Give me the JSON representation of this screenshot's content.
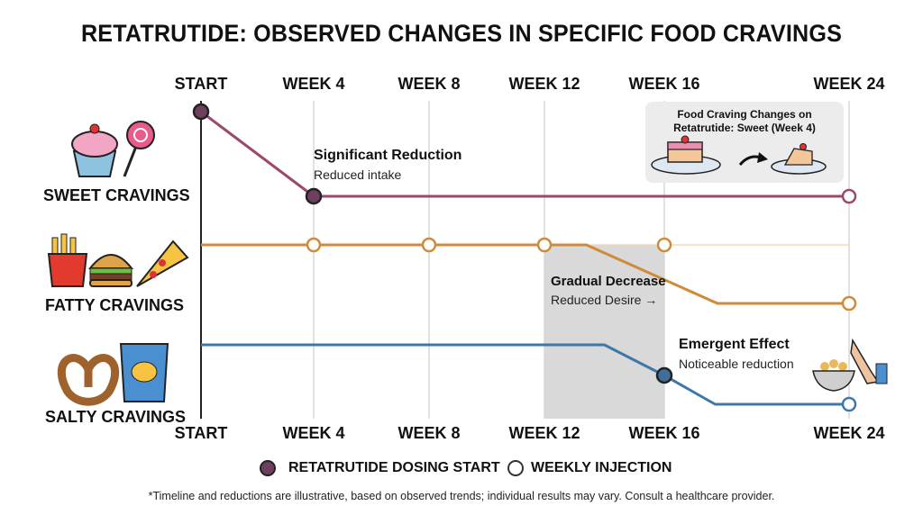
{
  "chart_data": {
    "type": "line",
    "title": "RETATRUTIDE: OBSERVED CHANGES IN SPECIFIC FOOD CRAVINGS",
    "x_ticks": [
      {
        "week": 0,
        "label": "START"
      },
      {
        "week": 4,
        "label": "WEEK 4"
      },
      {
        "week": 8,
        "label": "WEEK 8"
      },
      {
        "week": 12,
        "label": "WEEK 12"
      },
      {
        "week": 16,
        "label": "WEEK 16"
      },
      {
        "week": 24,
        "label": "WEEK 24"
      }
    ],
    "xlim": [
      0,
      24
    ],
    "grid": true,
    "legend_placement": "bottom",
    "shaded_region": {
      "from_week": 12,
      "to_week": 16,
      "color": "#d9d9d9"
    },
    "series": [
      {
        "name": "SWEET CRAVINGS",
        "color": "#9b4a6e",
        "points": [
          {
            "week": 0,
            "level": 1
          },
          {
            "week": 4,
            "level": 0.06
          },
          {
            "week": 24,
            "level": 0.06
          }
        ],
        "markers": [
          {
            "week": 0,
            "level": 1,
            "kind": "dosing-start"
          },
          {
            "week": 4,
            "level": 0.06,
            "kind": "dosing-start"
          },
          {
            "week": 24,
            "level": 0.06,
            "kind": "weekly-injection"
          }
        ],
        "annotation": {
          "week": 4,
          "title": "Significant Reduction",
          "subtitle": "Reduced intake"
        }
      },
      {
        "name": "FATTY CRAVINGS",
        "color": "#d08a3c",
        "baseline_continues": true,
        "points": [
          {
            "week": 0,
            "level": 1
          },
          {
            "week": 13.4,
            "level": 1
          },
          {
            "week": 18.3,
            "level": 0.35
          },
          {
            "week": 24,
            "level": 0.35
          }
        ],
        "markers": [
          {
            "week": 4,
            "level": 1,
            "kind": "weekly-injection"
          },
          {
            "week": 8,
            "level": 1,
            "kind": "weekly-injection"
          },
          {
            "week": 12,
            "level": 1,
            "kind": "weekly-injection"
          },
          {
            "week": 16,
            "level": 1,
            "kind": "weekly-injection"
          },
          {
            "week": 24,
            "level": 0.35,
            "kind": "weekly-injection"
          }
        ],
        "annotation": {
          "week": 12,
          "title": "Gradual Decrease",
          "subtitle": "Reduced Desire →"
        }
      },
      {
        "name": "SALTY CRAVINGS",
        "color": "#3f78a8",
        "points": [
          {
            "week": 0,
            "level": 1
          },
          {
            "week": 14,
            "level": 1
          },
          {
            "week": 16,
            "level": 0.66
          },
          {
            "week": 18.2,
            "level": 0.34
          },
          {
            "week": 24,
            "level": 0.34
          }
        ],
        "markers": [
          {
            "week": 16,
            "level": 0.66,
            "kind": "dosing-start"
          },
          {
            "week": 24,
            "level": 0.34,
            "kind": "weekly-injection"
          }
        ],
        "annotation": {
          "week": 16,
          "title": "Emergent Effect",
          "subtitle": "Noticeable reduction"
        }
      }
    ],
    "legend": [
      {
        "label": "RETATRUTIDE DOSING START",
        "kind": "dosing-start",
        "color": "#6e3f5e"
      },
      {
        "label": "WEEKLY INJECTION",
        "kind": "weekly-injection",
        "color": "#333333"
      }
    ],
    "inset": {
      "title_line1": "Food Craving Changes on",
      "title_line2": "Retatrutide: Sweet (Week 4)"
    },
    "footnote": "*Timeline and reductions are illustrative, based on observed trends; individual results may vary. Consult a healthcare provider."
  },
  "icons": [
    "cupcake-icon",
    "lollipop-icon",
    "fries-icon",
    "burger-icon",
    "pizza-icon",
    "pretzel-icon",
    "chips-bag-icon",
    "snack-bowl-icon",
    "stop-hand-icon",
    "cake-icon",
    "arrow-icon"
  ]
}
